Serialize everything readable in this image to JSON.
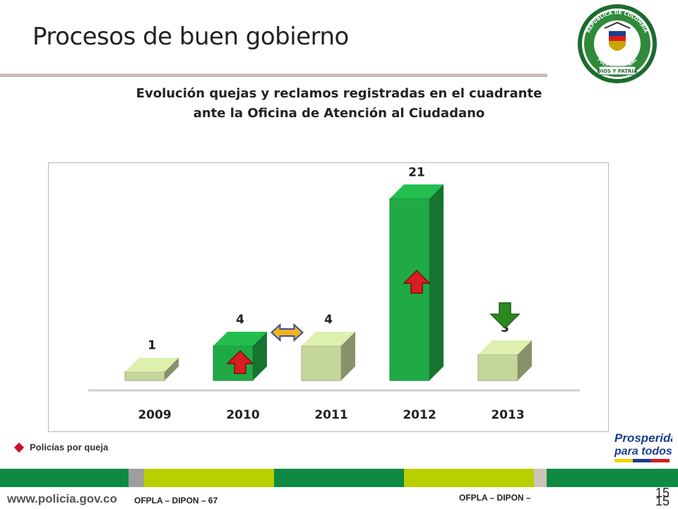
{
  "slide": {
    "title": "Procesos de buen gobierno",
    "heading_line1": "Evolución quejas y reclamos registradas en el cuadrante",
    "heading_line2": "ante  la Oficina de Atención al Ciudadano",
    "legend": "Policías por queja"
  },
  "seal": {
    "ring_text_top": "REPÚBLICA DE COLOMBIA",
    "ring_text_mid": "POLICÍA NACIONAL",
    "ring_text_bottom": "DIOS Y PATRIA"
  },
  "brand": {
    "line1": "Prosperidad",
    "line2": "para todos"
  },
  "footer": {
    "url": "www.policia.gov.co",
    "left_text": "OFPLA – DIPON – 67",
    "center_text": "OFPLA – DIPON –",
    "page_number": "15",
    "page_number_echo": "15"
  },
  "colors": {
    "bar_green": "#1faa45",
    "bar_light": "#c5d69b",
    "arrow_up": "#d81e1e",
    "arrow_down": "#2a8a1f",
    "arrow_equal": "#f2b320"
  },
  "chart_data": {
    "type": "bar",
    "categories": [
      "2009",
      "2010",
      "2011",
      "2012",
      "2013"
    ],
    "values": [
      1,
      4,
      4,
      21,
      3
    ],
    "trend": [
      "none",
      "up",
      "equal",
      "up",
      "down"
    ],
    "highlight": [
      false,
      true,
      false,
      true,
      false
    ],
    "ylim": [
      0,
      22
    ],
    "grid": false,
    "legend_position": "bottom-left"
  }
}
